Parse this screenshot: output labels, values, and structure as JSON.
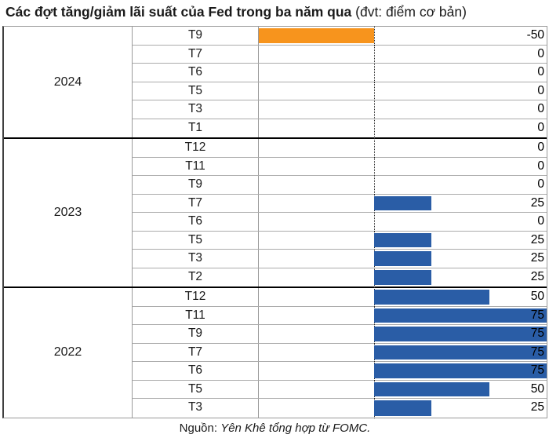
{
  "title": {
    "main": "Các đợt tăng/giảm lãi suất của Fed trong ba năm qua",
    "unit": " (đvt: điểm cơ bản)"
  },
  "source": {
    "prefix": "Nguồn: ",
    "text": "Yên Khê tổng hợp từ FOMC."
  },
  "colors": {
    "positive_bar": "#2a5da6",
    "negative_bar": "#f7941d",
    "grid_line": "#9a9a9a",
    "group_divider": "#000000",
    "zero_axis": "#2b2b2b"
  },
  "chart_data": {
    "type": "bar",
    "orientation": "horizontal",
    "title": "Các đợt tăng/giảm lãi suất của Fed trong ba năm qua",
    "unit_note": "đvt: điểm cơ bản",
    "axis": {
      "min": -50,
      "max": 75,
      "zero_line": "dotted"
    },
    "legend": "none",
    "groups": [
      {
        "year": "2024",
        "rows": [
          {
            "month": "T9",
            "value": -50
          },
          {
            "month": "T7",
            "value": 0
          },
          {
            "month": "T6",
            "value": 0
          },
          {
            "month": "T5",
            "value": 0
          },
          {
            "month": "T3",
            "value": 0
          },
          {
            "month": "T1",
            "value": 0
          }
        ]
      },
      {
        "year": "2023",
        "rows": [
          {
            "month": "T12",
            "value": 0
          },
          {
            "month": "T11",
            "value": 0
          },
          {
            "month": "T9",
            "value": 0
          },
          {
            "month": "T7",
            "value": 25
          },
          {
            "month": "T6",
            "value": 0
          },
          {
            "month": "T5",
            "value": 25
          },
          {
            "month": "T3",
            "value": 25
          },
          {
            "month": "T2",
            "value": 25
          }
        ]
      },
      {
        "year": "2022",
        "rows": [
          {
            "month": "T12",
            "value": 50
          },
          {
            "month": "T11",
            "value": 75
          },
          {
            "month": "T9",
            "value": 75
          },
          {
            "month": "T7",
            "value": 75
          },
          {
            "month": "T6",
            "value": 75
          },
          {
            "month": "T5",
            "value": 50
          },
          {
            "month": "T3",
            "value": 25
          }
        ]
      }
    ]
  }
}
